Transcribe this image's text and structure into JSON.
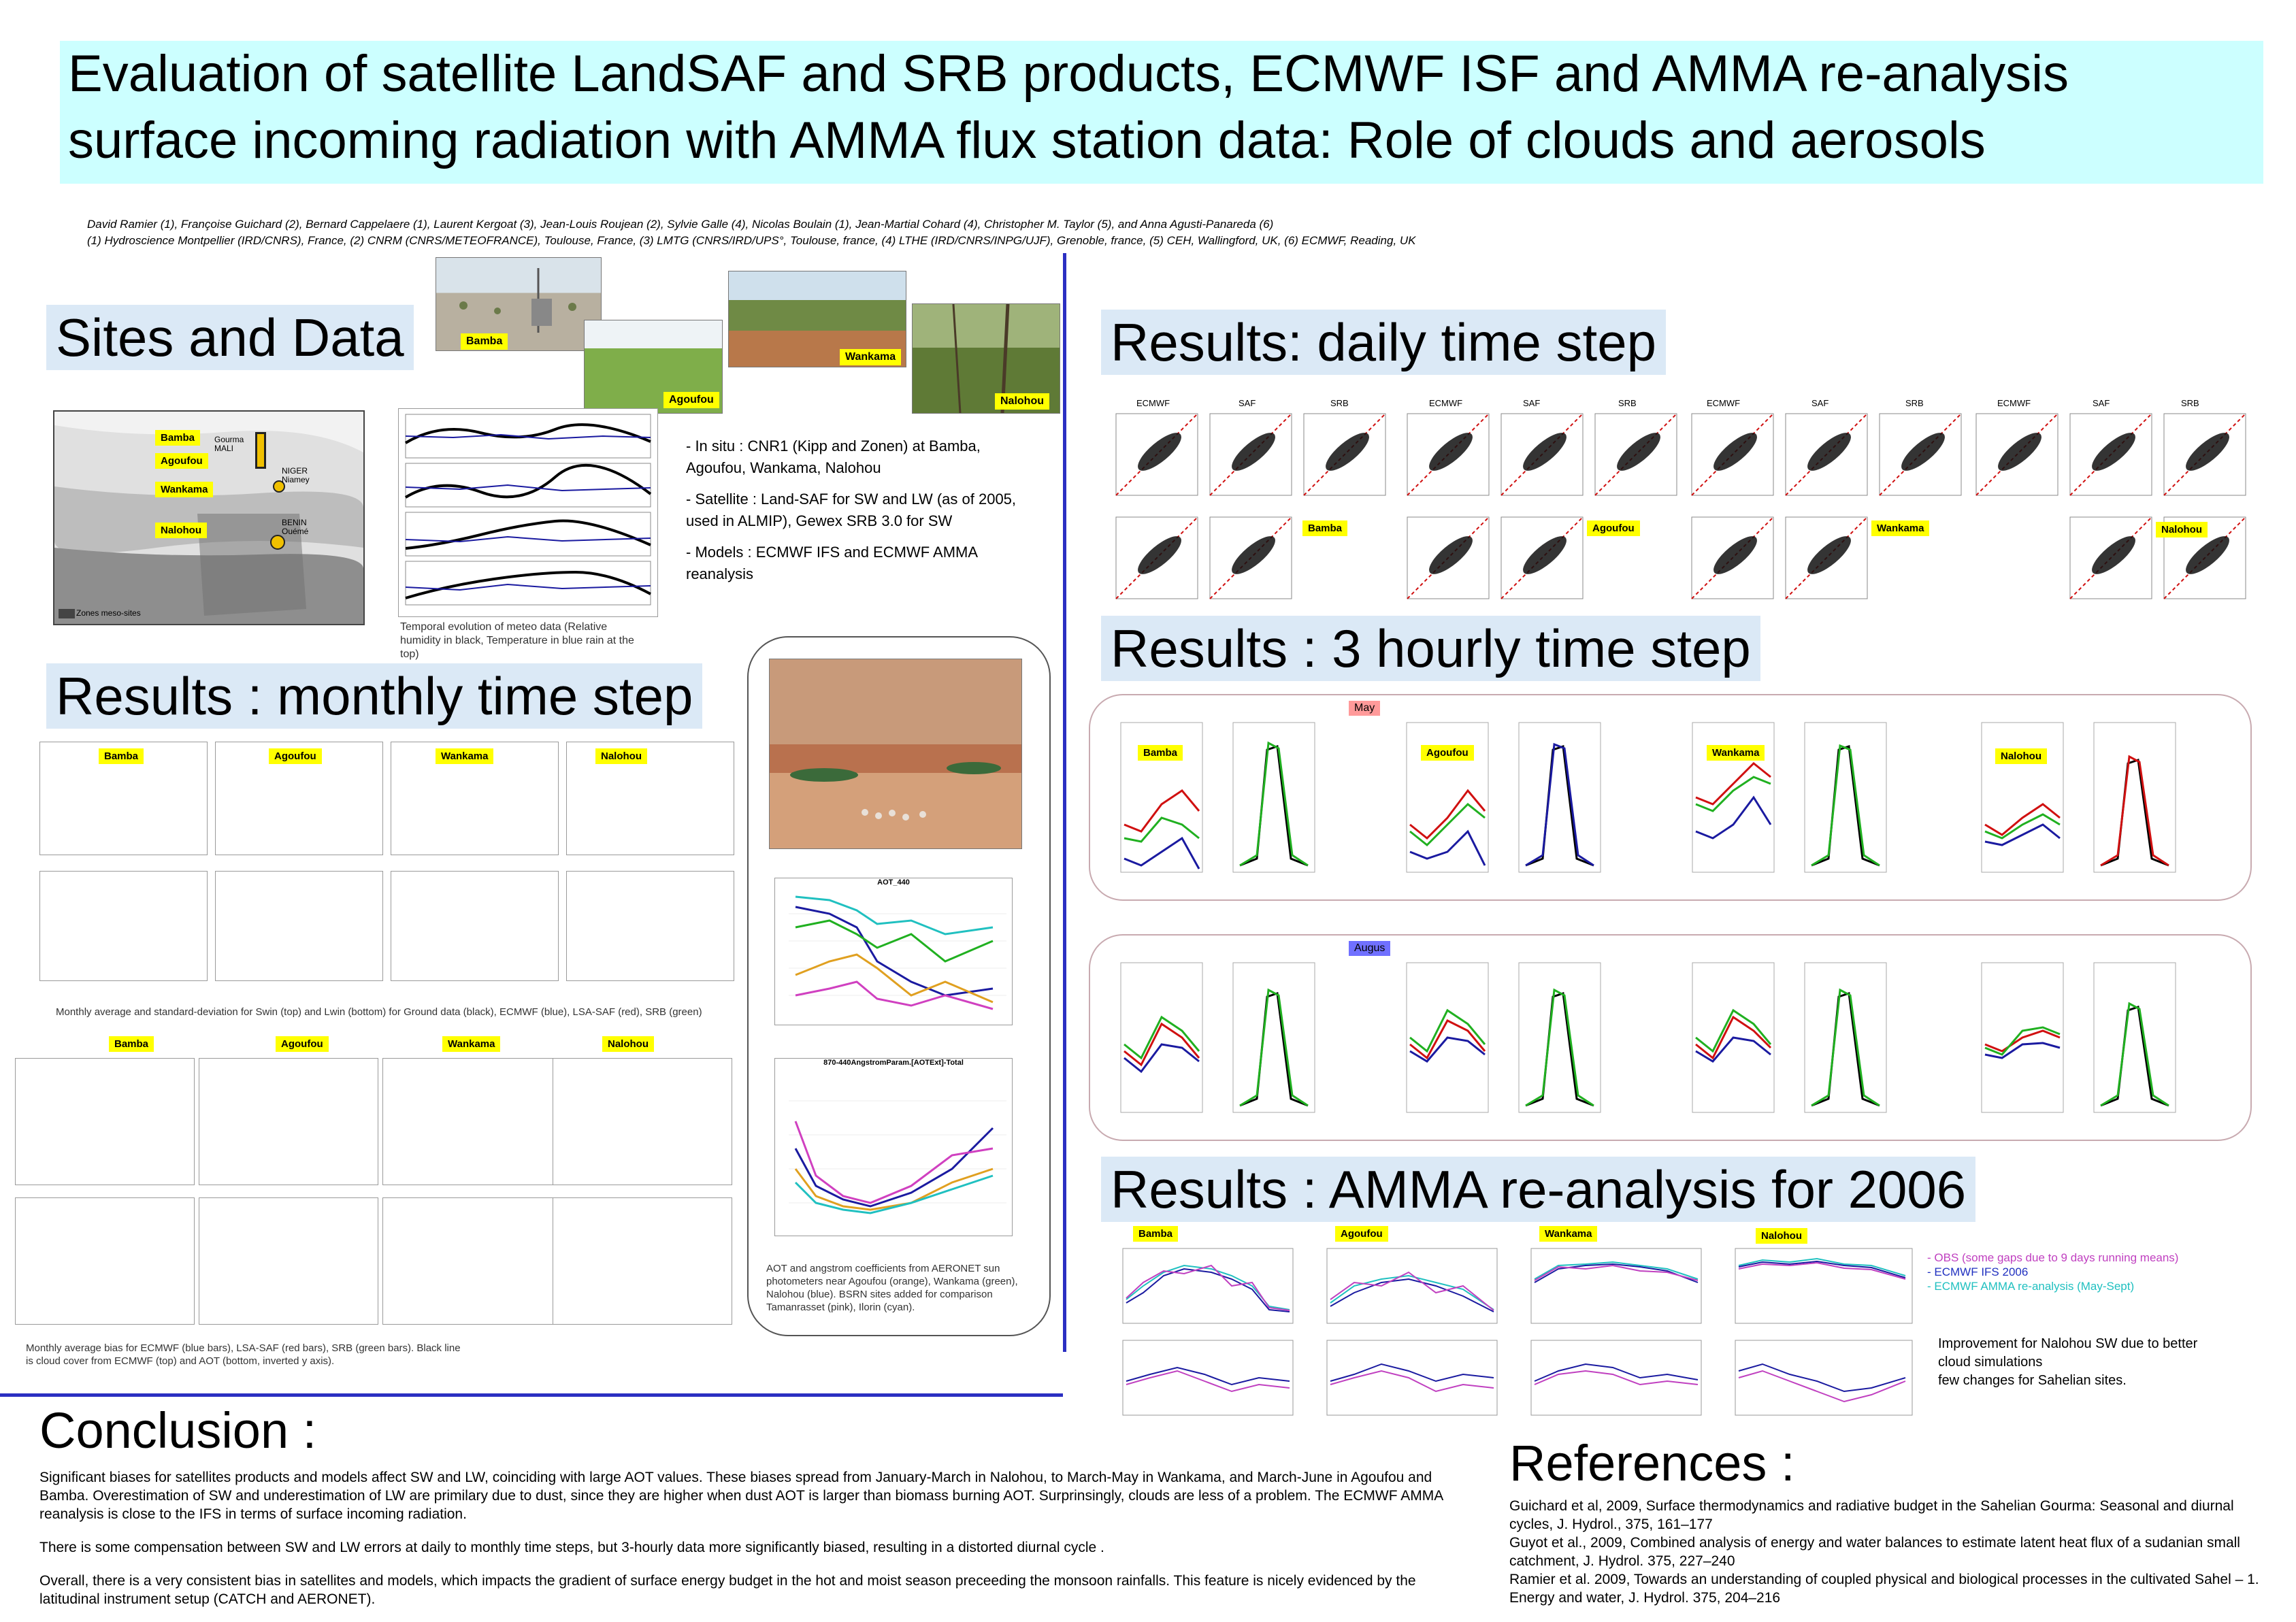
{
  "title": {
    "line1": "Evaluation of satellite LandSAF and SRB products, ECMWF ISF and AMMA re-analysis",
    "line2": "surface incoming radiation with AMMA flux station data: Role of clouds and aerosols"
  },
  "authors": {
    "names": "David Ramier (1), Françoise Guichard (2), Bernard Cappelaere (1), Laurent Kergoat (3), Jean-Louis Roujean (2), Sylvie Galle (4), Nicolas Boulain (1), Jean-Martial Cohard (4), Christopher M. Taylor (5), and Anna Agusti-Panareda (6)",
    "affiliations": "(1) Hydroscience Montpellier (IRD/CNRS), France, (2) CNRM (CNRS/METEOFRANCE), Toulouse, France, (3) LMTG (CNRS/IRD/UPS°, Toulouse, france, (4) LTHE (IRD/CNRS/INPG/UJF), Grenoble, france, (5) CEH, Wallingford, UK, (6) ECMWF, Reading, UK"
  },
  "sections": {
    "sites": "Sites and Data",
    "monthly": "Results : monthly time step",
    "daily": "Results: daily time step",
    "hourly": "Results : 3 hourly time step",
    "amma": "Results : AMMA re-analysis for 2006",
    "conclusion": "Conclusion :",
    "references": "References :"
  },
  "sites": {
    "bamba": "Bamba",
    "agoufou": "Agoufou",
    "wankama": "Wankama",
    "nalohou": "Nalohou"
  },
  "months": {
    "may": "May",
    "august": "Augus"
  },
  "map": {
    "gourma": "Gourma MALI",
    "niger": "NIGER Niamey",
    "benin": "BENIN Ouémé",
    "legend": "Zones meso-sites"
  },
  "daily_headers": [
    "ECMWF",
    "SAF",
    "SRB"
  ],
  "meteo_caption": "Temporal evolution of meteo data (Relative humidity in black, Temperature in blue rain at the top)",
  "data_bullets": {
    "insitu": "- In situ : CNR1 (Kipp and Zonen) at Bamba, Agoufou, Wankama, Nalohou",
    "satellite": "- Satellite : Land-SAF for SW and LW (as of 2005, used in ALMIP), Gewex SRB 3.0 for SW",
    "models": "- Models : ECMWF IFS and ECMWF AMMA reanalysis"
  },
  "monthly_caption": "Monthly average and standard-deviation for Swin (top) and Lwin (bottom) for Ground data (black), ECMWF (blue), LSA-SAF (red), SRB (green)",
  "bias_caption": "Monthly average bias for ECMWF (blue bars), LSA-SAF (red bars), SRB (green bars). Black line is cloud cover from ECMWF (top) and AOT (bottom, inverted y axis).",
  "aot": {
    "chart1_title": "AOT_440",
    "chart2_title": "870-440AngstromParam.[AOTExt]-Total",
    "caption": "AOT and angstrom coefficients from AERONET sun photometers near Agoufou (orange), Wankama (green), Nalohou (blue). BSRN sites added  for comparison Tamanrasset (pink), Ilorin (cyan)."
  },
  "amma_legend": {
    "obs": "- OBS (some gaps due to 9 days running means)",
    "ifs": "- ECMWF IFS 2006",
    "reanalysis": "- ECMWF AMMA re-analysis (May-Sept)"
  },
  "amma_note": {
    "line1": "Improvement for Nalohou SW  due to better",
    "line2": "cloud simulations",
    "line3": "few changes for Sahelian sites."
  },
  "conclusion": {
    "p1": "Significant biases for satellites products and models affect SW and LW, coinciding with large AOT values. These biases spread from January-March in Nalohou, to March-May in Wankama, and March-June in Agoufou and Bamba. Overestimation of SW and underestimation of LW are primilary due to dust, since they are higher when dust AOT is larger than biomass burning AOT. Surprinsingly, clouds are less of a problem. The ECMWF AMMA reanalysis is close to the IFS in terms of surface incoming radiation.",
    "p2": "There is some compensation between SW and LW errors at daily to monthly time steps, but 3-hourly data more significantly biased, resulting in a distorted diurnal cycle .",
    "p3": "Overall, there is a very consistent bias in satellites and models, which impacts the gradient of surface energy budget in the hot and moist season preceeding the monsoon rainfalls. This feature is nicely evidenced by the latitudinal instrument setup (CATCH and AERONET)."
  },
  "references": [
    "Guichard et al, 2009, Surface thermodynamics and radiative budget in the Sahelian Gourma: Seasonal and diurnal cycles, J. Hydrol., 375, 161–177",
    "Guyot et al., 2009, Combined analysis of energy and water balances to estimate latent heat flux of a sudanian small catchment, J. Hydrol. 375,  227–240",
    "Ramier et al. 2009, Towards an understanding of coupled physical and biological processes in the cultivated Sahel – 1. Energy and water, J. Hydrol. 375,  204–216"
  ],
  "colors": {
    "title_bg": "#ccffff",
    "section_bg": "#dbe9f6",
    "divider": "#2b2fc2",
    "tag": "#ffff00",
    "ground": "#000000",
    "ecmwf": "#1a1aa0",
    "lsasaf": "#d01010",
    "srb": "#20b020",
    "ifs": "#2030c0",
    "reanalysis": "#20c0c0",
    "obs": "#c040c0"
  }
}
